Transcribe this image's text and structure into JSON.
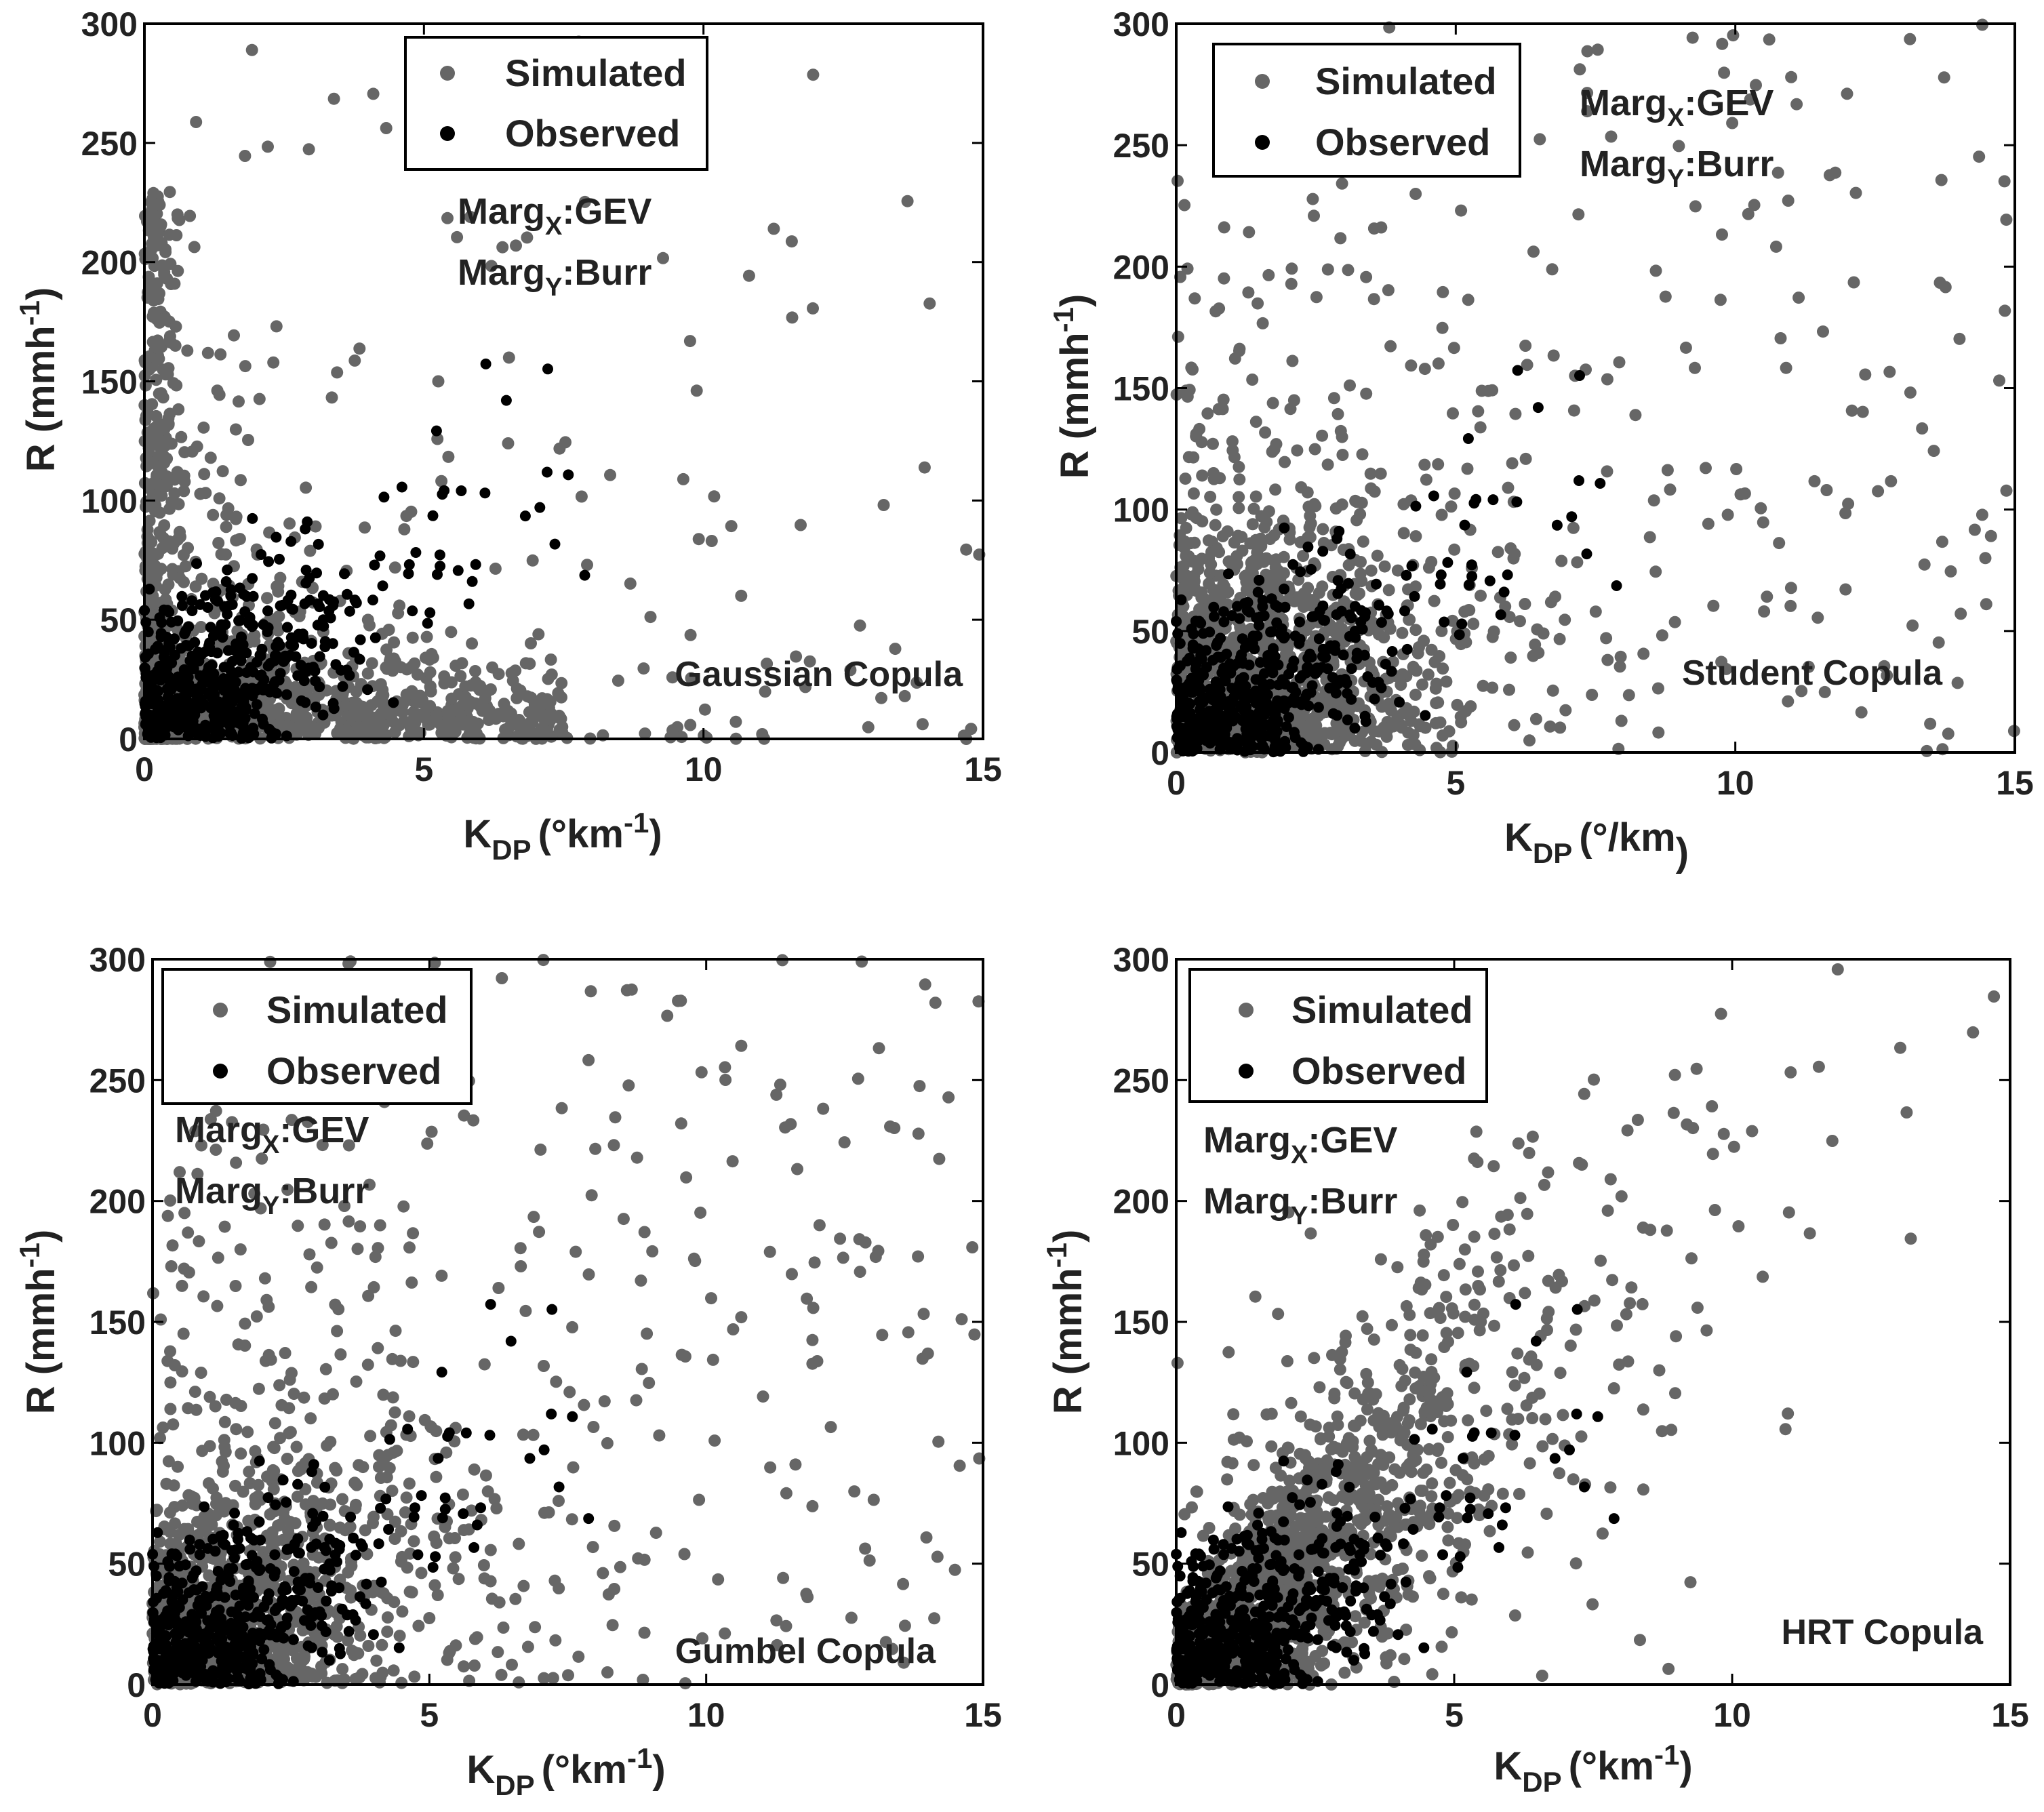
{
  "chart_data": [
    {
      "type": "scatter",
      "title": "Gaussian Copula",
      "xlabel": {
        "main": "K",
        "sub": "DP",
        "unit": "(°km",
        "exp": "-1",
        "close": ")"
      },
      "ylabel": {
        "main": "R (mmh",
        "exp": "-1",
        "close": ")"
      },
      "xlim": [
        0,
        15
      ],
      "ylim": [
        0,
        300
      ],
      "xticks": [
        "0",
        "5",
        "10",
        "15"
      ],
      "yticks": [
        "0",
        "50",
        "100",
        "150",
        "200",
        "250",
        "300"
      ],
      "marg_x": {
        "main": "Marg",
        "sub": "X",
        "dist": ":GEV"
      },
      "marg_y": {
        "main": "Marg",
        "sub": "Y",
        "dist": ":Burr"
      },
      "legend": [
        "Simulated",
        "Observed"
      ],
      "pattern": "gaussian",
      "colors": {
        "simulated": "#666666",
        "observed": "#000000"
      }
    },
    {
      "type": "scatter",
      "title": "Student Copula",
      "xlabel": {
        "main": "K",
        "sub": "DP",
        "unit": "(°/km",
        "exp": "",
        "close": ")"
      },
      "ylabel": {
        "main": "R (mmh",
        "exp": "-1",
        "close": ")"
      },
      "xlim": [
        0,
        15
      ],
      "ylim": [
        0,
        300
      ],
      "xticks": [
        "0",
        "5",
        "10",
        "15"
      ],
      "yticks": [
        "0",
        "50",
        "100",
        "150",
        "200",
        "250",
        "300"
      ],
      "marg_x": {
        "main": "Marg",
        "sub": "X",
        "dist": ":GEV"
      },
      "marg_y": {
        "main": "Marg",
        "sub": "Y",
        "dist": ":Burr"
      },
      "legend": [
        "Simulated",
        "Observed"
      ],
      "pattern": "student",
      "colors": {
        "simulated": "#666666",
        "observed": "#000000"
      }
    },
    {
      "type": "scatter",
      "title": "Gumbel Copula",
      "xlabel": {
        "main": "K",
        "sub": "DP",
        "unit": "(°km",
        "exp": "-1",
        "close": ")"
      },
      "ylabel": {
        "main": "R (mmh",
        "exp": "-1",
        "close": ")"
      },
      "xlim": [
        0,
        15
      ],
      "ylim": [
        0,
        300
      ],
      "xticks": [
        "0",
        "5",
        "10",
        "15"
      ],
      "yticks": [
        "0",
        "50",
        "100",
        "150",
        "200",
        "250",
        "300"
      ],
      "marg_x": {
        "main": "Marg",
        "sub": "X",
        "dist": ":GEV"
      },
      "marg_y": {
        "main": "Marg",
        "sub": "Y",
        "dist": ":Burr"
      },
      "legend": [
        "Simulated",
        "Observed"
      ],
      "pattern": "gumbel",
      "colors": {
        "simulated": "#666666",
        "observed": "#000000"
      }
    },
    {
      "type": "scatter",
      "title": "HRT Copula",
      "xlabel": {
        "main": "K",
        "sub": "DP",
        "unit": "(°km",
        "exp": "-1",
        "close": ")"
      },
      "ylabel": {
        "main": "R (mmh",
        "exp": "-1",
        "close": ")"
      },
      "xlim": [
        0,
        15
      ],
      "ylim": [
        0,
        300
      ],
      "xticks": [
        "0",
        "5",
        "10",
        "15"
      ],
      "yticks": [
        "0",
        "50",
        "100",
        "150",
        "200",
        "250",
        "300"
      ],
      "marg_x": {
        "main": "Marg",
        "sub": "X",
        "dist": ":GEV"
      },
      "marg_y": {
        "main": "Marg",
        "sub": "Y",
        "dist": ":Burr"
      },
      "legend": [
        "Simulated",
        "Observed"
      ],
      "pattern": "hrt",
      "colors": {
        "simulated": "#666666",
        "observed": "#000000"
      }
    }
  ]
}
